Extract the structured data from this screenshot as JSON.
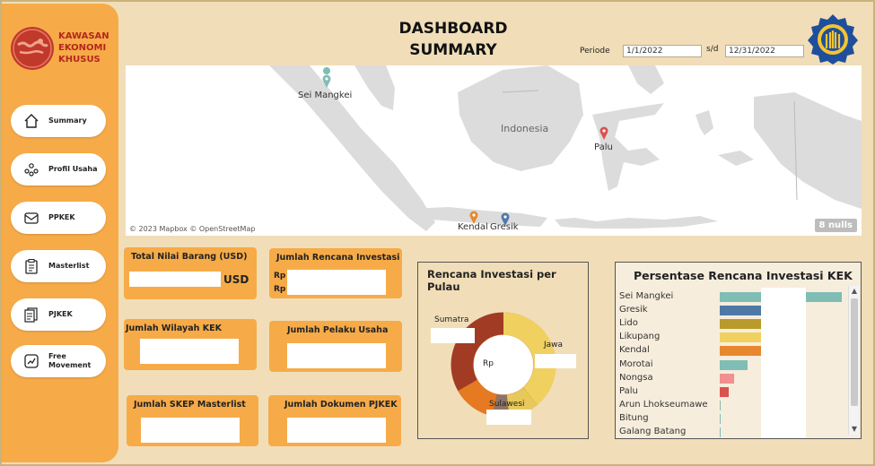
{
  "brand": {
    "line1": "KAWASAN",
    "line2": "EKONOMI",
    "line3": "KHUSUS"
  },
  "nav": [
    {
      "label": "Summary",
      "icon": "home-icon"
    },
    {
      "label": "Profil Usaha",
      "icon": "people-icon"
    },
    {
      "label": "PPKEK",
      "icon": "envelope-icon"
    },
    {
      "label": "Masterlist",
      "icon": "clipboard-icon"
    },
    {
      "label": "PJKEK",
      "icon": "documents-icon"
    },
    {
      "label": "Free Movement",
      "icon": "trend-icon"
    }
  ],
  "header": {
    "title_line1": "DASHBOARD",
    "title_line2": "SUMMARY",
    "periode_label": "Periode",
    "start_date": "1/1/2022",
    "separator": "s/d",
    "end_date": "12/31/2022"
  },
  "map": {
    "labels": [
      "Sei Mangkei",
      "Indonesia",
      "Palu",
      "Kendal",
      "Gresik"
    ],
    "attribution": "© 2023 Mapbox © OpenStreetMap",
    "nulls": "8 nulls",
    "colors": {
      "sei_mangkei": "#7fbdb5",
      "palu": "#d9534f",
      "kendal": "#e8882e",
      "gresik": "#4e79a7"
    }
  },
  "cards": {
    "total_nilai_barang": {
      "title": "Total Nilai Barang (USD)",
      "unit": "USD"
    },
    "jumlah_rencana_investasi": {
      "title": "Jumlah Rencana Investasi",
      "rp1": "Rp",
      "rp2": "Rp"
    },
    "jumlah_wilayah_kek": {
      "title": "Jumlah Wilayah KEK"
    },
    "jumlah_pelaku_usaha": {
      "title": "Jumlah Pelaku Usaha"
    },
    "jumlah_skep_masterlist": {
      "title": "Jumlah SKEP Masterlist"
    },
    "jumlah_dokumen_pjkek": {
      "title": "Jumlah Dokumen PJKEK"
    }
  },
  "donut": {
    "title": "Rencana Investasi per Pulau",
    "center_label": "Rp",
    "labels": {
      "sumatra": "Sumatra",
      "jawa": "Jawa",
      "sulawesi": "Sulawesi"
    },
    "colors": {
      "sumatra": "#a23b23",
      "jawa": "#f0d160",
      "sulawesi": "#8d7565",
      "other": "#e57a22"
    }
  },
  "bars": {
    "title": "Persentase Rencana Investasi KEK",
    "items": [
      {
        "name": "Sei Mangkei",
        "color": "#7fbdb5",
        "value": 1.0
      },
      {
        "name": "Gresik",
        "color": "#4e79a7",
        "value": 0.36
      },
      {
        "name": "Lido",
        "color": "#b89b2a",
        "value": 0.36
      },
      {
        "name": "Likupang",
        "color": "#f0d160",
        "value": 0.36
      },
      {
        "name": "Kendal",
        "color": "#e8882e",
        "value": 0.36
      },
      {
        "name": "Morotai",
        "color": "#7fbdb5",
        "value": 0.23
      },
      {
        "name": "Nongsa",
        "color": "#f0908f",
        "value": 0.12
      },
      {
        "name": "Palu",
        "color": "#d9534f",
        "value": 0.07
      },
      {
        "name": "Arun Lhokseumawe",
        "color": "#7fbdb5",
        "value": 0.01
      },
      {
        "name": "Bitung",
        "color": "#7fbdb5",
        "value": 0.01
      },
      {
        "name": "Galang Batang",
        "color": "#7fbdb5",
        "value": 0.005
      }
    ]
  }
}
